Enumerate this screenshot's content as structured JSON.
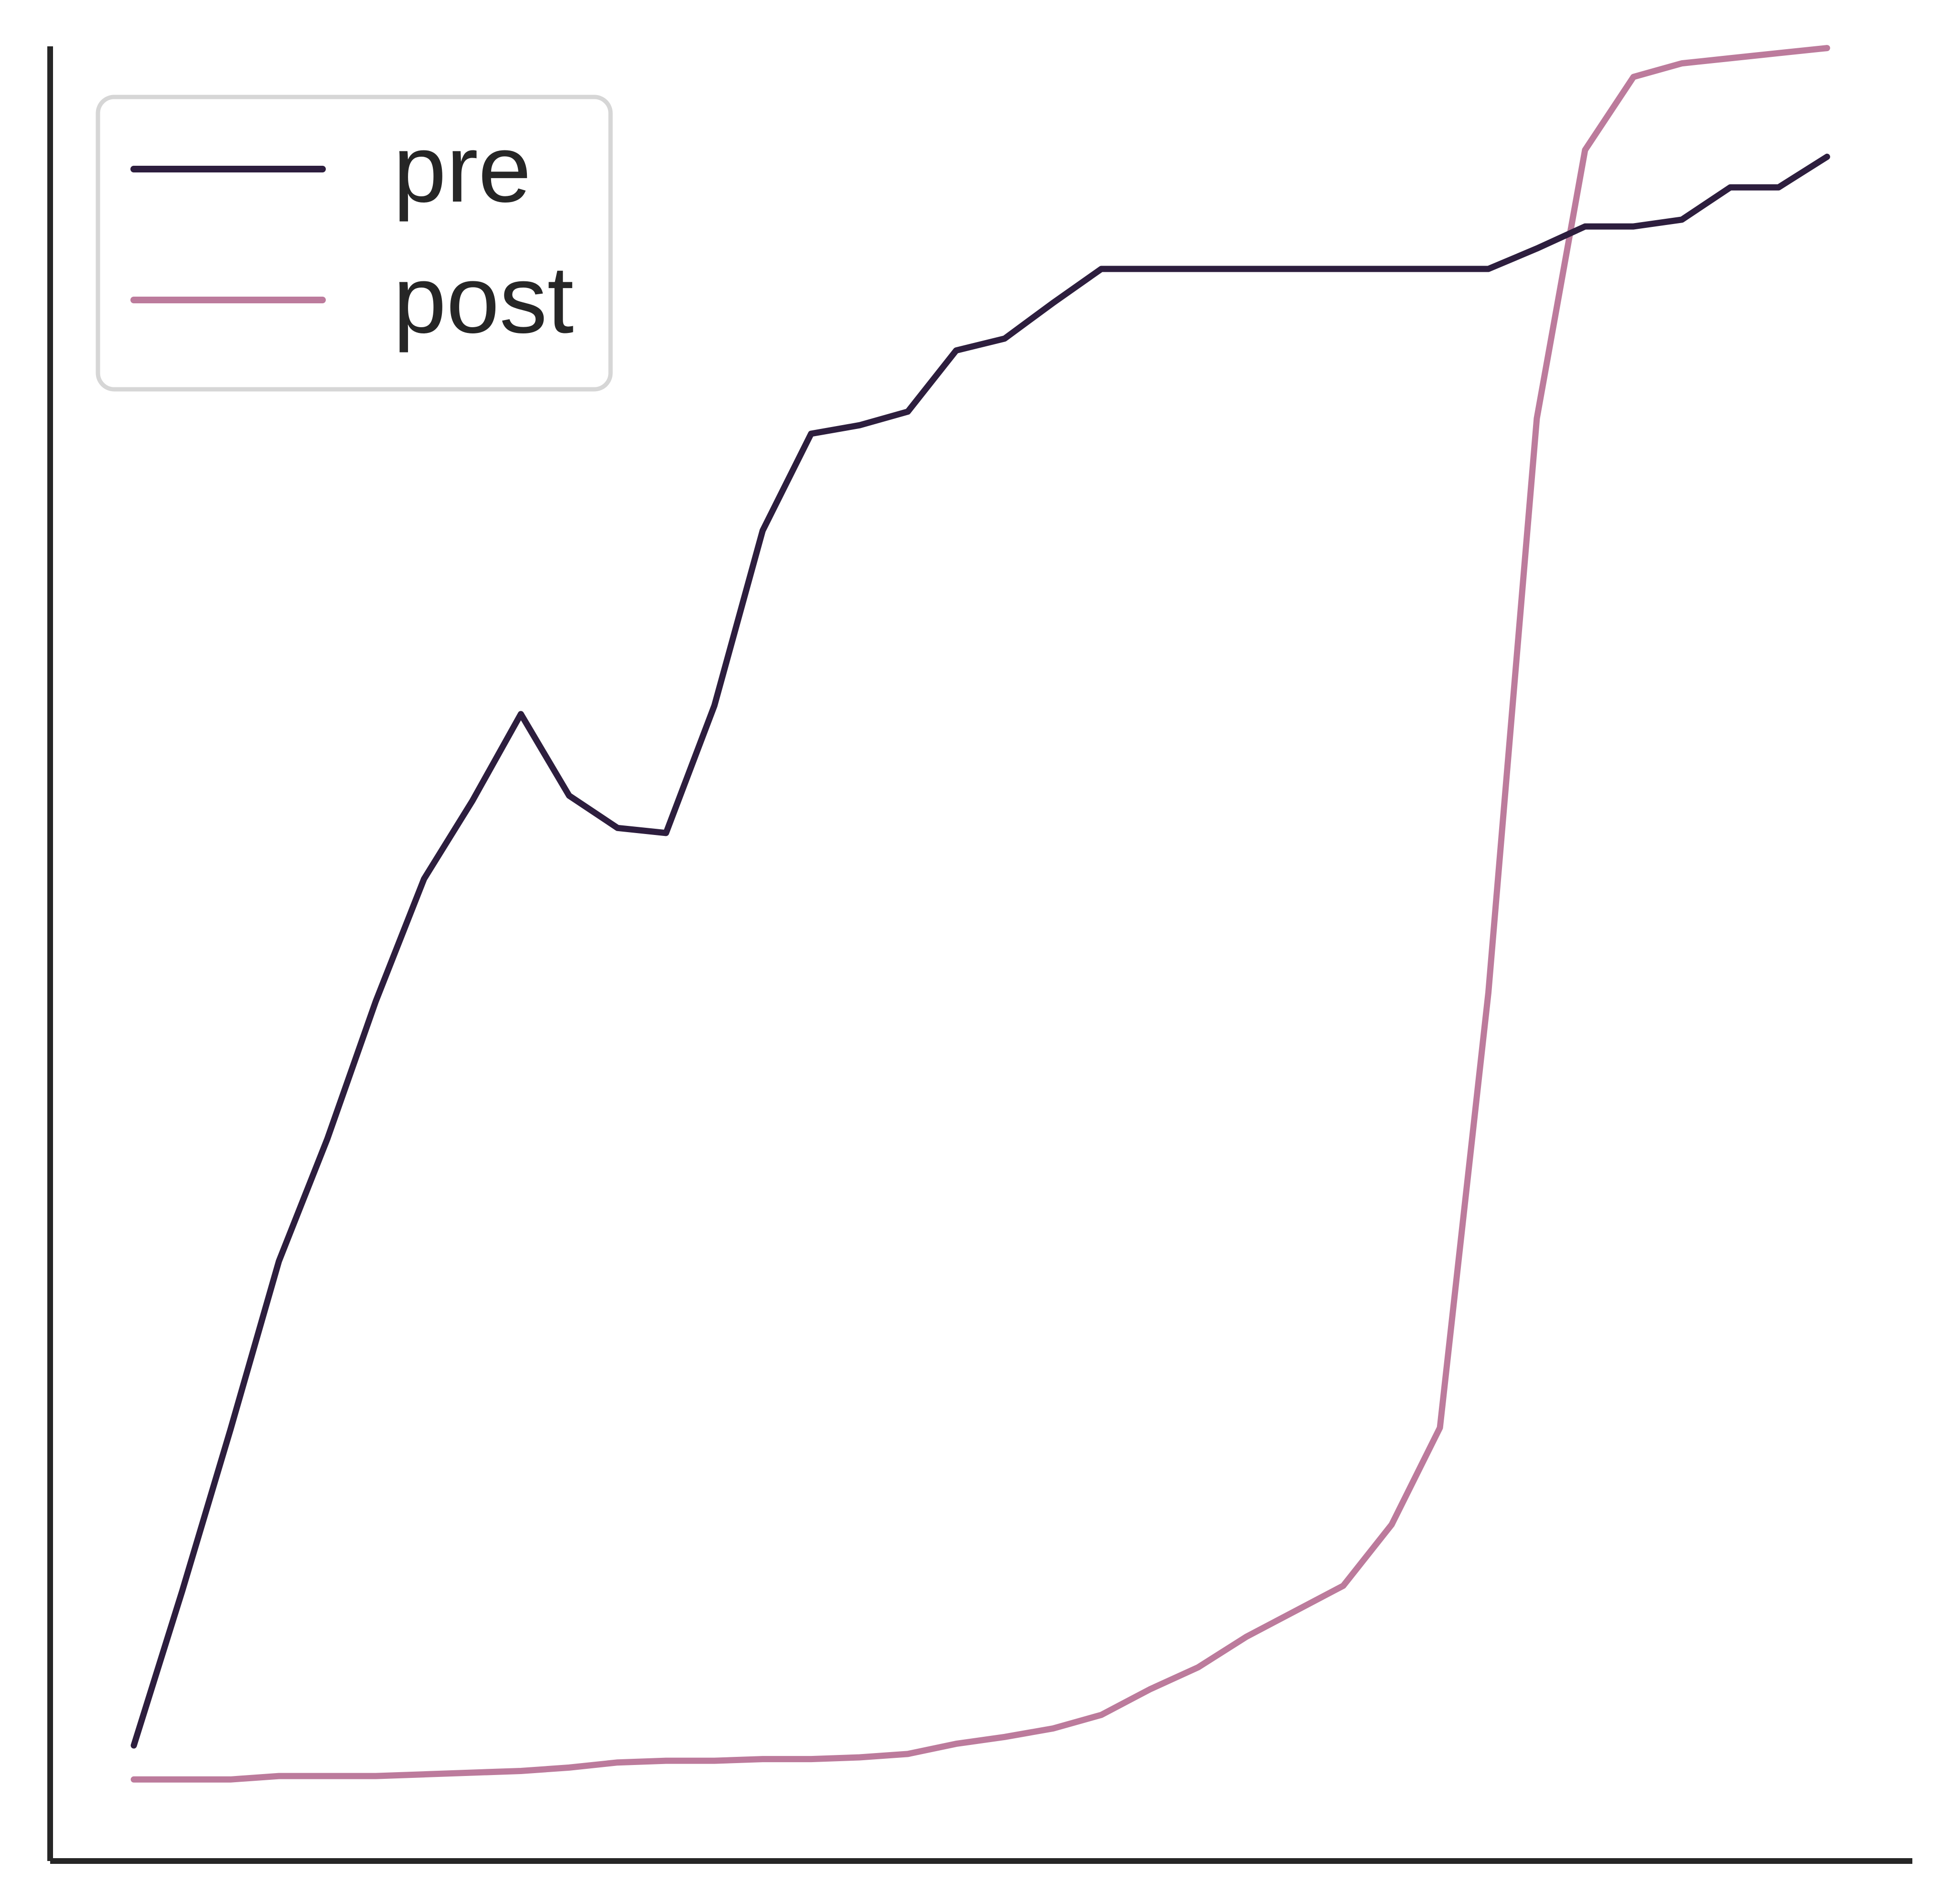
{
  "chart_data": {
    "type": "line",
    "title": "",
    "xlabel": "",
    "ylabel": "",
    "x_ticks_shown": false,
    "y_ticks_shown": false,
    "grid": false,
    "legend_position": "top-left",
    "xlim": [
      -0.0494,
      1.0504
    ],
    "ylim": [
      -0.068,
      1.0
    ],
    "series": [
      {
        "name": "pre",
        "color": "#2d1e3e",
        "x": [
          0.0,
          0.0286,
          0.0571,
          0.0857,
          0.1143,
          0.1429,
          0.1714,
          0.2,
          0.2286,
          0.2571,
          0.2857,
          0.3143,
          0.3429,
          0.3714,
          0.4,
          0.4286,
          0.4571,
          0.4857,
          0.5143,
          0.5429,
          0.5714,
          0.6,
          0.6286,
          0.6571,
          0.6857,
          0.7143,
          0.7429,
          0.7714,
          0.8,
          0.8286,
          0.8571,
          0.8857,
          0.9143,
          0.9429,
          0.9714,
          1.0
        ],
        "y": [
          0.0,
          0.091,
          0.186,
          0.285,
          0.357,
          0.438,
          0.51,
          0.556,
          0.607,
          0.559,
          0.54,
          0.537,
          0.612,
          0.715,
          0.772,
          0.777,
          0.785,
          0.821,
          0.828,
          0.849,
          0.869,
          0.869,
          0.869,
          0.869,
          0.869,
          0.869,
          0.869,
          0.869,
          0.869,
          0.881,
          0.894,
          0.894,
          0.898,
          0.917,
          0.917,
          0.935
        ]
      },
      {
        "name": "post",
        "color": "#bc7b9c",
        "x": [
          0.0,
          0.0286,
          0.0571,
          0.0857,
          0.1143,
          0.1429,
          0.1714,
          0.2,
          0.2286,
          0.2571,
          0.2857,
          0.3143,
          0.3429,
          0.3714,
          0.4,
          0.4286,
          0.4571,
          0.4857,
          0.5143,
          0.5429,
          0.5714,
          0.6,
          0.6286,
          0.6571,
          0.6857,
          0.7143,
          0.7429,
          0.7714,
          0.8,
          0.8286,
          0.8571,
          0.8857,
          0.9143,
          0.9429,
          0.9714,
          1.0
        ],
        "y": [
          -0.02,
          -0.02,
          -0.02,
          -0.018,
          -0.018,
          -0.018,
          -0.017,
          -0.016,
          -0.015,
          -0.013,
          -0.01,
          -0.009,
          -0.009,
          -0.008,
          -0.008,
          -0.007,
          -0.005,
          0.001,
          0.005,
          0.01,
          0.018,
          0.033,
          0.046,
          0.064,
          0.079,
          0.094,
          0.13,
          0.187,
          0.443,
          0.781,
          0.939,
          0.982,
          0.99,
          0.993,
          0.996,
          0.999
        ]
      }
    ]
  }
}
